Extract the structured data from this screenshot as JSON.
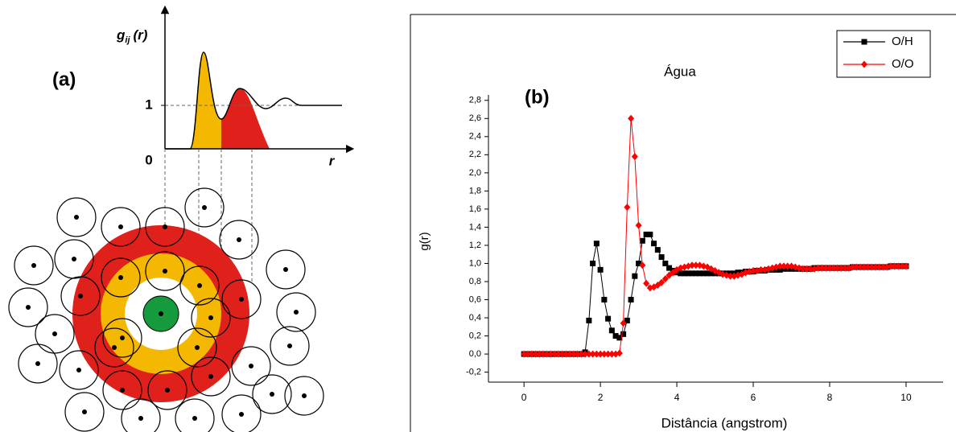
{
  "panel_a": {
    "label": "(a)",
    "y_label": {
      "main": "g",
      "sub": "ij",
      "arg": "(r)"
    },
    "one_label": "1",
    "zero_label": "0",
    "x_label": "r"
  },
  "chart_data": {
    "type": "line",
    "title": "Água",
    "annotation": "(b)",
    "x_label": "Distância (angstrom)",
    "y_label": "g(r)",
    "x": [
      0,
      0.1,
      0.2,
      0.3,
      0.4,
      0.5,
      0.6,
      0.7,
      0.8,
      0.9,
      1,
      1.1,
      1.2,
      1.3,
      1.4,
      1.5,
      1.6,
      1.7,
      1.8,
      1.9,
      2,
      2.1,
      2.2,
      2.3,
      2.4,
      2.5,
      2.6,
      2.7,
      2.8,
      2.9,
      3,
      3.1,
      3.2,
      3.3,
      3.4,
      3.5,
      3.6,
      3.7,
      3.8,
      3.9,
      4,
      4.1,
      4.2,
      4.3,
      4.4,
      4.5,
      4.6,
      4.7,
      4.8,
      4.9,
      5,
      5.1,
      5.2,
      5.3,
      5.4,
      5.5,
      5.6,
      5.7,
      5.8,
      5.9,
      6,
      6.1,
      6.2,
      6.3,
      6.4,
      6.5,
      6.6,
      6.7,
      6.8,
      6.9,
      7,
      7.1,
      7.2,
      7.3,
      7.4,
      7.5,
      7.6,
      7.7,
      7.8,
      7.9,
      8,
      8.1,
      8.2,
      8.3,
      8.4,
      8.5,
      8.6,
      8.7,
      8.8,
      8.9,
      9,
      9.1,
      9.2,
      9.3,
      9.4,
      9.5,
      9.6,
      9.7,
      9.8,
      9.9,
      10
    ],
    "series": [
      {
        "name": "O/H",
        "color": "#000000",
        "marker": "square",
        "values": [
          0,
          0,
          0,
          0,
          0,
          0,
          0,
          0,
          0,
          0,
          0,
          0,
          0,
          0,
          0,
          0,
          0.02,
          0.37,
          1.0,
          1.22,
          0.93,
          0.6,
          0.39,
          0.26,
          0.2,
          0.18,
          0.22,
          0.37,
          0.6,
          0.86,
          1.0,
          1.25,
          1.32,
          1.32,
          1.22,
          1.15,
          1.07,
          1.0,
          0.95,
          0.92,
          0.9,
          0.89,
          0.89,
          0.89,
          0.89,
          0.89,
          0.89,
          0.89,
          0.89,
          0.89,
          0.89,
          0.89,
          0.89,
          0.89,
          0.89,
          0.89,
          0.9,
          0.9,
          0.91,
          0.91,
          0.91,
          0.92,
          0.92,
          0.92,
          0.93,
          0.93,
          0.93,
          0.93,
          0.94,
          0.94,
          0.94,
          0.94,
          0.94,
          0.94,
          0.94,
          0.94,
          0.95,
          0.95,
          0.95,
          0.95,
          0.95,
          0.95,
          0.95,
          0.95,
          0.95,
          0.95,
          0.96,
          0.96,
          0.96,
          0.96,
          0.96,
          0.96,
          0.96,
          0.96,
          0.96,
          0.96,
          0.97,
          0.97,
          0.97,
          0.97,
          0.97
        ]
      },
      {
        "name": "O/O",
        "color": "#ff0000",
        "marker": "diamond",
        "values": [
          0,
          0,
          0,
          0,
          0,
          0,
          0,
          0,
          0,
          0,
          0,
          0,
          0,
          0,
          0,
          0,
          0,
          0,
          0,
          0,
          0,
          0,
          0,
          0,
          0,
          0.01,
          0.34,
          1.62,
          2.6,
          2.18,
          1.42,
          0.98,
          0.78,
          0.73,
          0.74,
          0.76,
          0.79,
          0.83,
          0.87,
          0.9,
          0.93,
          0.95,
          0.96,
          0.97,
          0.98,
          0.98,
          0.98,
          0.97,
          0.96,
          0.94,
          0.92,
          0.9,
          0.88,
          0.87,
          0.86,
          0.86,
          0.87,
          0.88,
          0.9,
          0.91,
          0.92,
          0.92,
          0.93,
          0.93,
          0.94,
          0.95,
          0.96,
          0.97,
          0.97,
          0.97,
          0.97,
          0.96,
          0.95,
          0.94,
          0.94,
          0.94,
          0.94,
          0.95,
          0.95,
          0.95,
          0.95,
          0.95,
          0.95,
          0.95,
          0.95,
          0.95,
          0.96,
          0.96,
          0.96,
          0.96,
          0.96,
          0.96,
          0.96,
          0.96,
          0.96,
          0.96,
          0.97,
          0.97,
          0.97,
          0.97,
          0.97
        ]
      }
    ],
    "xlim": [
      -0.93,
      10.97
    ],
    "ylim": [
      -0.31,
      2.86
    ],
    "xticks": [
      0,
      2,
      4,
      6,
      8,
      10
    ],
    "yticks": [
      {
        "value": -0.2,
        "label": "-0,2"
      },
      {
        "value": 0,
        "label": "0,0"
      },
      {
        "value": 0.2,
        "label": "0,2"
      },
      {
        "value": 0.4,
        "label": "0,4"
      },
      {
        "value": 0.6,
        "label": "0,6"
      },
      {
        "value": 0.8,
        "label": "0,8"
      },
      {
        "value": 1.0,
        "label": "1,0"
      },
      {
        "value": 1.2,
        "label": "1,2"
      },
      {
        "value": 1.4,
        "label": "1,4"
      },
      {
        "value": 1.6,
        "label": "1,6"
      },
      {
        "value": 1.8,
        "label": "1,8"
      },
      {
        "value": 2.0,
        "label": "2,0"
      },
      {
        "value": 2.2,
        "label": "2,2"
      },
      {
        "value": 2.4,
        "label": "2,4"
      },
      {
        "value": 2.6,
        "label": "2,6"
      },
      {
        "value": 2.8,
        "label": "2,8"
      }
    ],
    "legend": "top-right",
    "grid": false
  }
}
